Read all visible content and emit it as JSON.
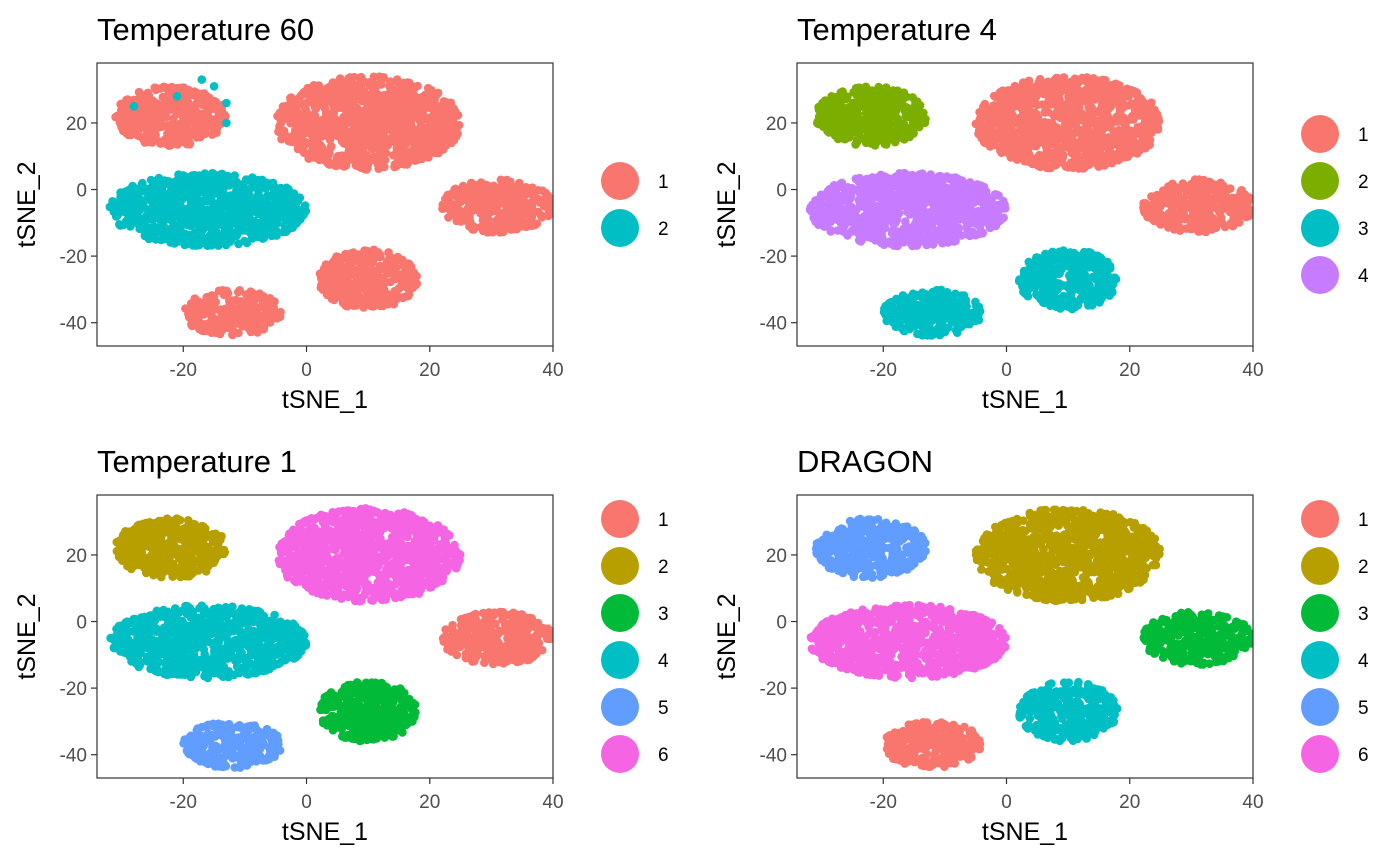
{
  "chart_data": [
    {
      "type": "scatter",
      "title": "Temperature 60",
      "xlabel": "tSNE_1",
      "ylabel": "tSNE_2",
      "xlim": [
        -34,
        40
      ],
      "ylim": [
        -47,
        38
      ],
      "xticks": [
        "-20",
        "0",
        "20",
        "40"
      ],
      "yticks": [
        "20",
        "0",
        "-20",
        "-40"
      ],
      "grid": false,
      "legend": {
        "position": "right",
        "entries": [
          {
            "label": "1",
            "color": "#F8766D"
          },
          {
            "label": "2",
            "color": "#00BFC4"
          }
        ]
      },
      "series": [
        {
          "color": "#F8766D",
          "clusters": [
            [
              -22,
              22,
              9,
              9
            ],
            [
              10,
              20,
              15,
              14
            ],
            [
              31,
              -5,
              9,
              8
            ],
            [
              -12,
              -37,
              8,
              7
            ],
            [
              10,
              -27,
              8,
              9
            ]
          ]
        },
        {
          "color": "#00BFC4",
          "clusters": [
            [
              -16,
              -6,
              16,
              11
            ]
          ],
          "points": [
            [
              -28,
              25
            ],
            [
              -21,
              28
            ],
            [
              -17,
              33
            ],
            [
              -15,
              31
            ],
            [
              -13,
              26
            ],
            [
              -13,
              20
            ]
          ]
        }
      ]
    },
    {
      "type": "scatter",
      "title": "Temperature 4",
      "xlabel": "tSNE_1",
      "ylabel": "tSNE_2",
      "xlim": [
        -34,
        40
      ],
      "ylim": [
        -47,
        38
      ],
      "xticks": [
        "-20",
        "0",
        "20",
        "40"
      ],
      "yticks": [
        "20",
        "0",
        "-20",
        "-40"
      ],
      "grid": false,
      "legend": {
        "position": "right",
        "entries": [
          {
            "label": "1",
            "color": "#F8766D"
          },
          {
            "label": "2",
            "color": "#7CAE00"
          },
          {
            "label": "3",
            "color": "#00BFC4"
          },
          {
            "label": "4",
            "color": "#C77CFF"
          }
        ]
      },
      "series": [
        {
          "color": "#F8766D",
          "clusters": [
            [
              10,
              20,
              15,
              14
            ],
            [
              31,
              -5,
              9,
              8
            ]
          ]
        },
        {
          "color": "#7CAE00",
          "clusters": [
            [
              -22,
              22,
              9,
              9
            ]
          ]
        },
        {
          "color": "#00BFC4",
          "clusters": [
            [
              -12,
              -37,
              8,
              7
            ],
            [
              10,
              -27,
              8,
              9
            ]
          ]
        },
        {
          "color": "#C77CFF",
          "clusters": [
            [
              -16,
              -6,
              16,
              11
            ]
          ]
        }
      ]
    },
    {
      "type": "scatter",
      "title": "Temperature 1",
      "xlabel": "tSNE_1",
      "ylabel": "tSNE_2",
      "xlim": [
        -34,
        40
      ],
      "ylim": [
        -47,
        38
      ],
      "xticks": [
        "-20",
        "0",
        "20",
        "40"
      ],
      "yticks": [
        "20",
        "0",
        "-20",
        "-40"
      ],
      "grid": false,
      "legend": {
        "position": "right",
        "entries": [
          {
            "label": "1",
            "color": "#F8766D"
          },
          {
            "label": "2",
            "color": "#B79F00"
          },
          {
            "label": "3",
            "color": "#00BA38"
          },
          {
            "label": "4",
            "color": "#00BFC4"
          },
          {
            "label": "5",
            "color": "#619CFF"
          },
          {
            "label": "6",
            "color": "#F564E3"
          }
        ]
      },
      "series": [
        {
          "color": "#F8766D",
          "clusters": [
            [
              31,
              -5,
              9,
              8
            ]
          ]
        },
        {
          "color": "#B79F00",
          "clusters": [
            [
              -22,
              22,
              9,
              9
            ]
          ]
        },
        {
          "color": "#00BA38",
          "clusters": [
            [
              10,
              -27,
              8,
              9
            ]
          ]
        },
        {
          "color": "#00BFC4",
          "clusters": [
            [
              -16,
              -6,
              16,
              11
            ]
          ]
        },
        {
          "color": "#619CFF",
          "clusters": [
            [
              -12,
              -37,
              8,
              7
            ]
          ]
        },
        {
          "color": "#F564E3",
          "clusters": [
            [
              10,
              20,
              15,
              14
            ]
          ]
        }
      ]
    },
    {
      "type": "scatter",
      "title": "DRAGON",
      "xlabel": "tSNE_1",
      "ylabel": "tSNE_2",
      "xlim": [
        -34,
        40
      ],
      "ylim": [
        -47,
        38
      ],
      "xticks": [
        "-20",
        "0",
        "20",
        "40"
      ],
      "yticks": [
        "20",
        "0",
        "-20",
        "-40"
      ],
      "grid": false,
      "legend": {
        "position": "right",
        "entries": [
          {
            "label": "1",
            "color": "#F8766D"
          },
          {
            "label": "2",
            "color": "#B79F00"
          },
          {
            "label": "3",
            "color": "#00BA38"
          },
          {
            "label": "4",
            "color": "#00BFC4"
          },
          {
            "label": "5",
            "color": "#619CFF"
          },
          {
            "label": "6",
            "color": "#F564E3"
          }
        ]
      },
      "series": [
        {
          "color": "#F8766D",
          "clusters": [
            [
              -12,
              -37,
              8,
              7
            ]
          ]
        },
        {
          "color": "#B79F00",
          "clusters": [
            [
              10,
              20,
              15,
              14
            ]
          ]
        },
        {
          "color": "#00BA38",
          "clusters": [
            [
              31,
              -5,
              9,
              8
            ]
          ]
        },
        {
          "color": "#00BFC4",
          "clusters": [
            [
              10,
              -27,
              8,
              9
            ]
          ]
        },
        {
          "color": "#619CFF",
          "clusters": [
            [
              -22,
              22,
              9,
              9
            ]
          ]
        },
        {
          "color": "#F564E3",
          "clusters": [
            [
              -16,
              -6,
              16,
              11
            ]
          ]
        }
      ]
    }
  ]
}
